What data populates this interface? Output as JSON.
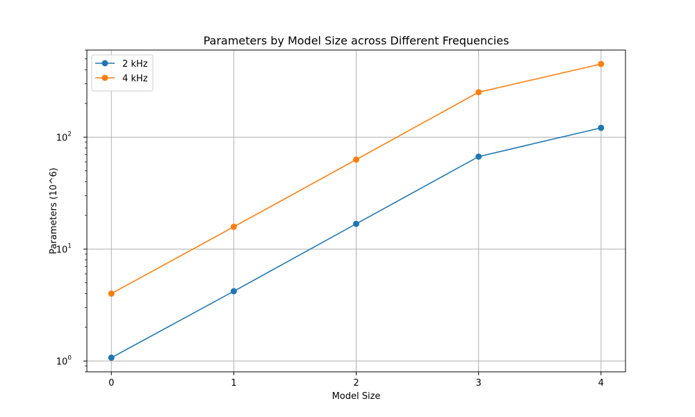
{
  "chart_data": {
    "type": "line",
    "title": "Parameters by Model Size across Different Frequencies",
    "xlabel": "Model Size",
    "ylabel": "Parameters (10^6)",
    "x": [
      0,
      1,
      2,
      3,
      4
    ],
    "xticks": [
      "0",
      "1",
      "2",
      "3",
      "4"
    ],
    "xlim": [
      -0.2,
      4.2
    ],
    "yscale": "log",
    "ylim": [
      0.8,
      600
    ],
    "yticks": [
      {
        "value": 1,
        "base": "10",
        "exp": "0"
      },
      {
        "value": 10,
        "base": "10",
        "exp": "1"
      },
      {
        "value": 100,
        "base": "10",
        "exp": "2"
      }
    ],
    "grid": true,
    "legend_position": "top-left",
    "series": [
      {
        "name": "2 kHz",
        "color": "#1f77b4",
        "marker": "circle",
        "values": [
          1.07,
          4.2,
          16.8,
          67,
          121
        ]
      },
      {
        "name": "4 kHz",
        "color": "#ff7f0e",
        "marker": "circle",
        "values": [
          4.0,
          15.8,
          63,
          252,
          450
        ]
      }
    ]
  }
}
